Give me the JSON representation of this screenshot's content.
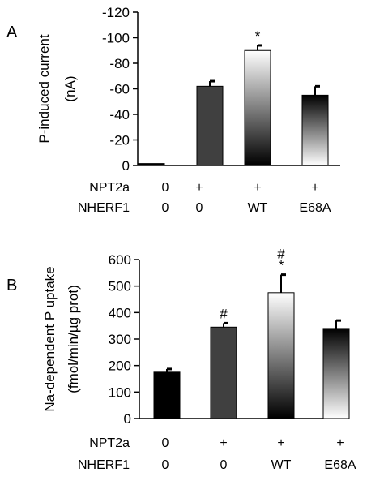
{
  "chart_data": [
    {
      "panel_label": "A",
      "type": "bar",
      "categories": [
        "0|0",
        "+|0",
        "+|WT",
        "+|E68A"
      ],
      "ylabel": "P-induced current",
      "ylabel_unit": "(nA)",
      "yticks": [
        "0",
        "-20",
        "-40",
        "-60",
        "-80",
        "-100",
        "-120"
      ],
      "ylim": [
        0,
        -120
      ],
      "axis_inverted": true,
      "values": [
        -1.5,
        -62,
        -90,
        -55
      ],
      "errors": [
        0,
        4,
        4,
        7
      ],
      "bar_fills": [
        "#000000",
        "#404040",
        "gradient-dark-to-light",
        "gradient-light-to-dark"
      ],
      "annotations": [
        "",
        "",
        "*",
        ""
      ],
      "conditions": [
        {
          "label": "NPT2a",
          "values": [
            "0",
            "+",
            "+",
            "+"
          ]
        },
        {
          "label": "NHERF1",
          "values": [
            "0",
            "0",
            "WT",
            "E68A"
          ]
        }
      ]
    },
    {
      "panel_label": "B",
      "type": "bar",
      "categories": [
        "0|0",
        "+|0",
        "+|WT",
        "+|E68A"
      ],
      "ylabel": "Na-dependent P uptake",
      "ylabel_unit": "(fmol/min/µg prot)",
      "yticks": [
        "0",
        "100",
        "200",
        "300",
        "400",
        "500",
        "600"
      ],
      "ylim": [
        0,
        600
      ],
      "axis_inverted": false,
      "values": [
        175,
        345,
        475,
        340
      ],
      "errors": [
        12,
        15,
        68,
        30
      ],
      "bar_fills": [
        "#000000",
        "#404040",
        "gradient-dark-to-light",
        "gradient-light-to-dark"
      ],
      "annotations": [
        "",
        "#",
        "#\n*",
        ""
      ],
      "conditions": [
        {
          "label": "NPT2a",
          "values": [
            "0",
            "+",
            "+",
            "+"
          ]
        },
        {
          "label": "NHERF1",
          "values": [
            "0",
            "0",
            "WT",
            "E68A"
          ]
        }
      ]
    }
  ]
}
